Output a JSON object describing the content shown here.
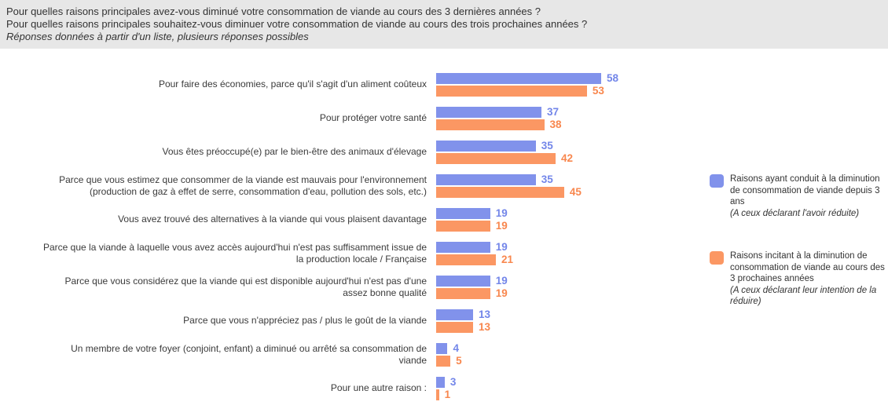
{
  "header": {
    "line1": "Pour quelles raisons principales avez-vous diminué votre consommation de viande au cours des 3 dernières années ?",
    "line2": "Pour quelles raisons principales souhaitez-vous diminuer votre consommation de viande au cours des trois prochaines années ?",
    "note": "Réponses données à partir d'un liste, plusieurs réponses possibles"
  },
  "chart_data": {
    "type": "bar",
    "orientation": "horizontal",
    "grid": false,
    "legend_position": "right",
    "value_labels": true,
    "xlim": [
      0,
      60
    ],
    "categories": [
      "Pour faire des économies, parce qu'il s'agit d'un aliment coûteux",
      "Pour protéger votre santé",
      "Vous êtes préoccupé(e) par le bien-être des animaux d'élevage",
      "Parce que vous estimez que consommer de la viande est mauvais pour l'environnement (production de gaz à effet de serre, consommation d'eau, pollution des sols, etc.)",
      "Vous avez trouvé des alternatives à la viande qui vous plaisent davantage",
      "Parce que la viande à laquelle vous avez accès aujourd'hui n'est pas suffisamment issue de la production locale / Française",
      "Parce que vous considérez que la viande qui est disponible aujourd'hui n'est pas d'une assez bonne qualité",
      "Parce que vous n'appréciez pas / plus le goût de la viande",
      "Un membre de votre foyer (conjoint, enfant) a diminué ou arrêté sa consommation de viande",
      "Pour une autre raison :"
    ],
    "series": [
      {
        "name": "Raisons ayant conduit à la diminution de consommation de viande depuis 3 ans",
        "note": "(A ceux déclarant l'avoir réduite)",
        "color": "#8192EB",
        "label_color": "#7386E9",
        "values": [
          58,
          37,
          35,
          35,
          19,
          19,
          19,
          13,
          4,
          3
        ]
      },
      {
        "name": "Raisons incitant à la diminution de consommation de viande au cours des 3 prochaines années",
        "note": "(A ceux déclarant leur intention de la réduire)",
        "color": "#FB9763",
        "label_color": "#F8874E",
        "values": [
          53,
          38,
          42,
          45,
          19,
          21,
          19,
          13,
          5,
          1
        ]
      }
    ]
  }
}
